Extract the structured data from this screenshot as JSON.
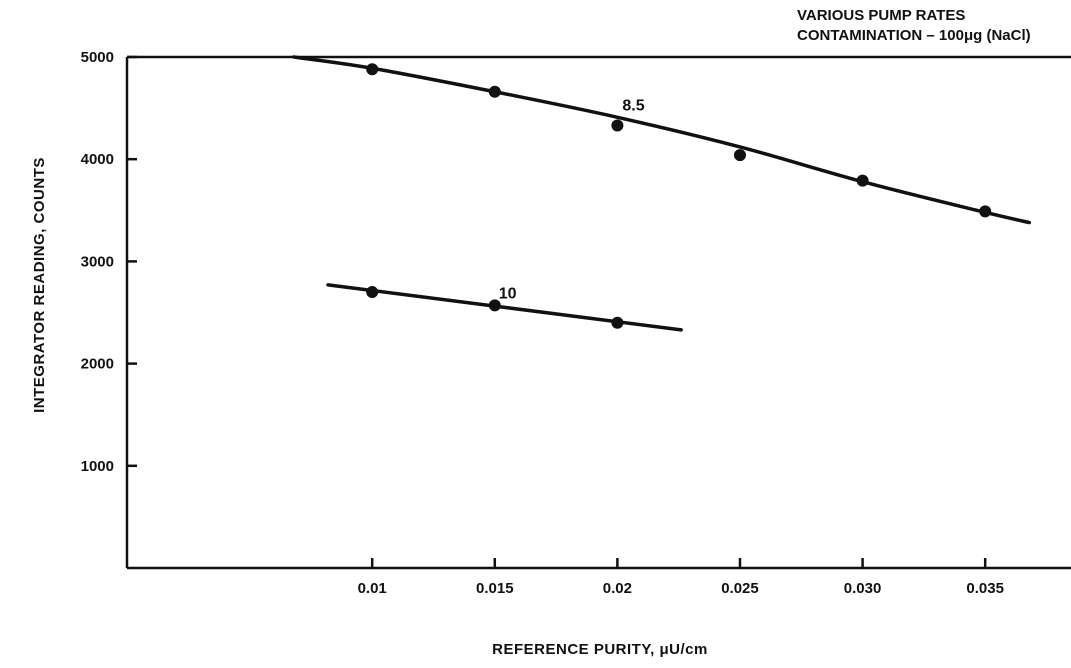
{
  "chart_data": {
    "type": "scatter",
    "title": "",
    "annotation_lines": [
      "VARIOUS PUMP RATES",
      "CONTAMINATION – 100μg (NaCl)"
    ],
    "xlabel": "REFERENCE PURITY, μU/cm",
    "ylabel": "INTEGRATOR READING, COUNTS",
    "xlim": [
      0.0,
      0.0385
    ],
    "ylim": [
      0,
      5000
    ],
    "x_ticks": [
      0.01,
      0.015,
      0.02,
      0.025,
      0.03,
      0.035
    ],
    "x_tick_labels": [
      "0.01",
      "0.015",
      "0.02",
      "0.025",
      "0.030",
      "0.035"
    ],
    "y_ticks": [
      1000,
      2000,
      3000,
      4000,
      5000
    ],
    "y_tick_labels": [
      "1000",
      "2000",
      "3000",
      "4000",
      "5000"
    ],
    "grid": false,
    "series": [
      {
        "name": "8.5",
        "points": [
          [
            0.01,
            4880
          ],
          [
            0.015,
            4660
          ],
          [
            0.02,
            4330
          ],
          [
            0.025,
            4040
          ],
          [
            0.03,
            3790
          ],
          [
            0.035,
            3490
          ]
        ],
        "fit": [
          [
            0.0068,
            5000
          ],
          [
            0.01,
            4890
          ],
          [
            0.015,
            4660
          ],
          [
            0.02,
            4410
          ],
          [
            0.025,
            4120
          ],
          [
            0.03,
            3780
          ],
          [
            0.035,
            3480
          ],
          [
            0.0368,
            3380
          ]
        ]
      },
      {
        "name": "10",
        "points": [
          [
            0.01,
            2700
          ],
          [
            0.015,
            2570
          ],
          [
            0.02,
            2400
          ]
        ],
        "fit": [
          [
            0.0082,
            2770
          ],
          [
            0.0226,
            2330
          ]
        ]
      }
    ]
  }
}
